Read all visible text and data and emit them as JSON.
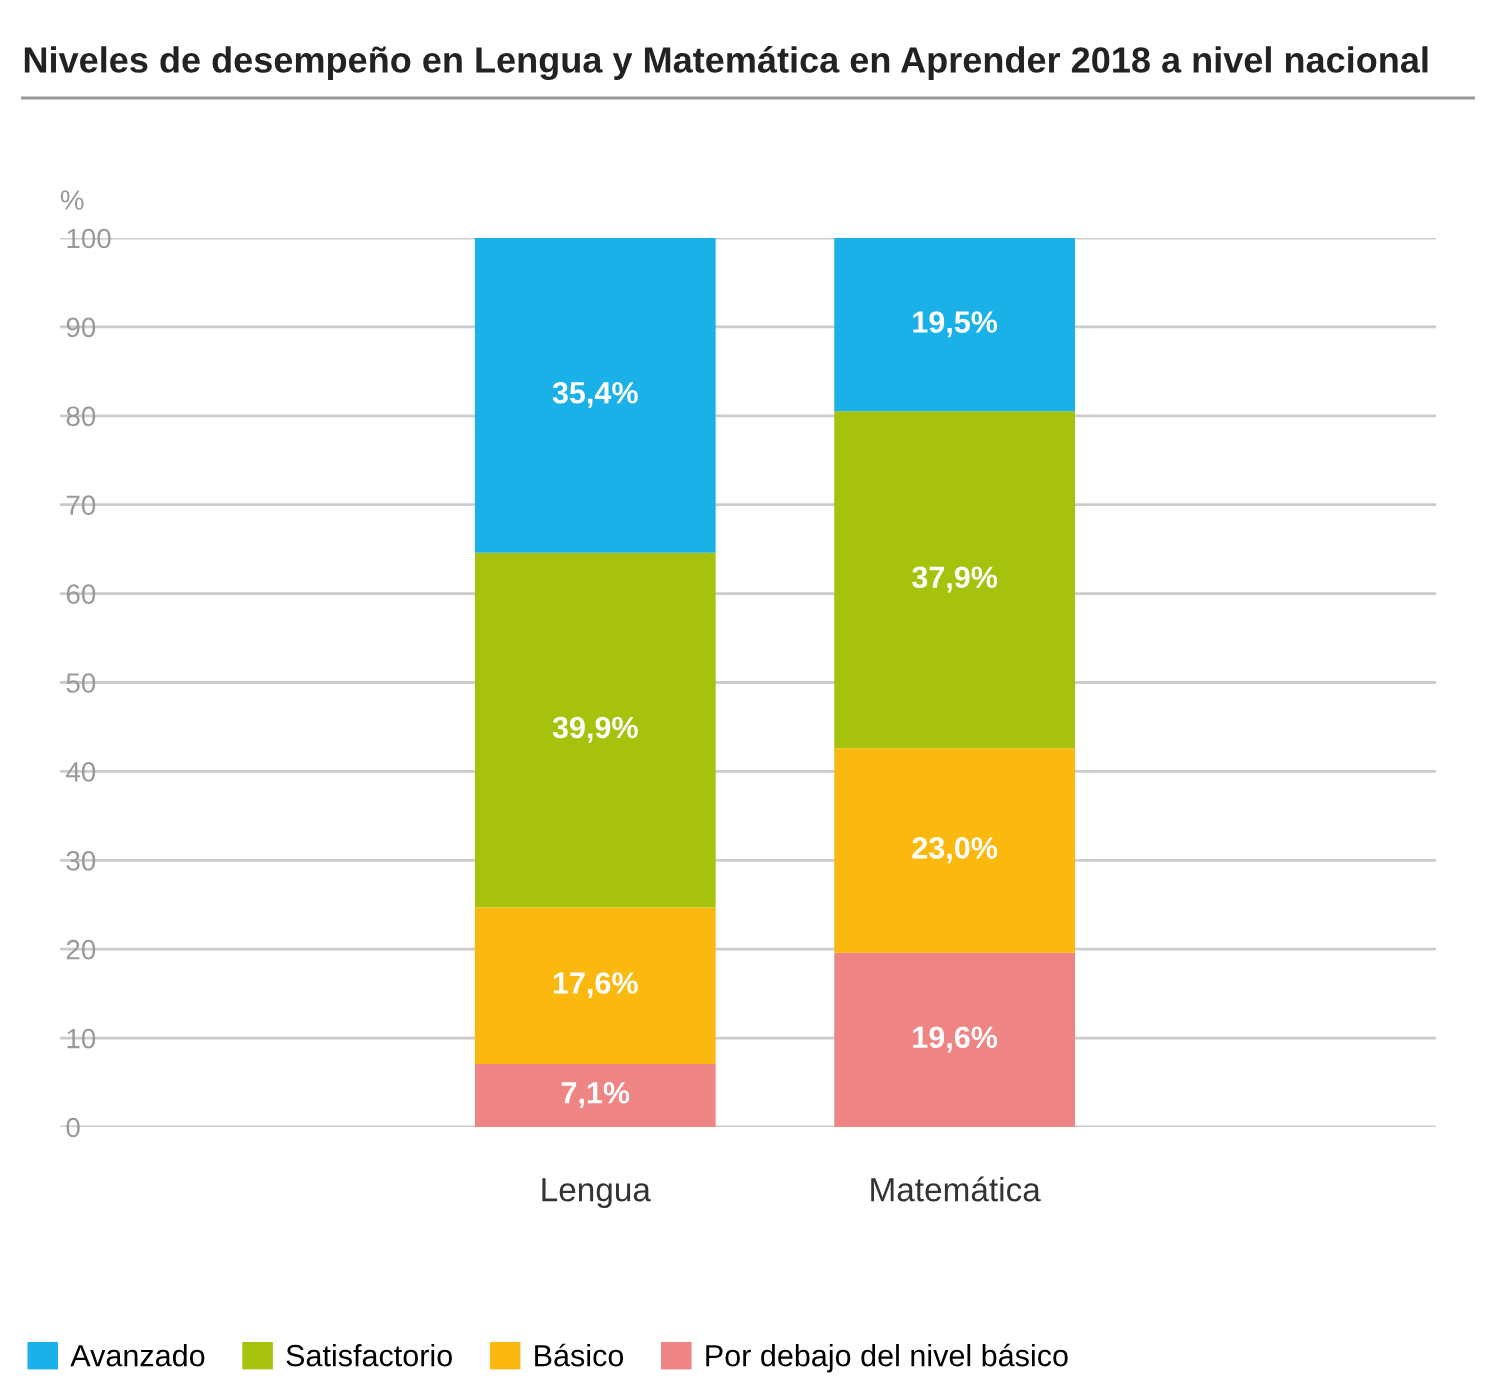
{
  "chart_data": {
    "type": "bar",
    "title": "Niveles de desempeño en Lengua y Matemática en Aprender 2018 a nivel nacional",
    "ylabel": "%",
    "categories": [
      "Lengua",
      "Matemática"
    ],
    "stacked": true,
    "series": [
      {
        "name": "Por debajo del nivel básico",
        "color": "#ee8584",
        "values": [
          7.1,
          19.6
        ],
        "value_labels": [
          "7,1%",
          "19,6%"
        ]
      },
      {
        "name": "Básico",
        "color": "#fbb80f",
        "values": [
          17.6,
          23.0
        ],
        "value_labels": [
          "17,6%",
          "23,0%"
        ]
      },
      {
        "name": "Satisfactorio",
        "color": "#a6c20c",
        "values": [
          39.9,
          37.9
        ],
        "value_labels": [
          "39,9%",
          "37,9%"
        ]
      },
      {
        "name": "Avanzado",
        "color": "#1ab0e8",
        "values": [
          35.4,
          19.5
        ],
        "value_labels": [
          "35,4%",
          "19,5%"
        ]
      }
    ],
    "ylim": [
      0,
      100
    ],
    "yticks": [
      0,
      10,
      20,
      30,
      40,
      50,
      60,
      70,
      80,
      90,
      100
    ],
    "grid": "y",
    "legend": "bottom"
  }
}
